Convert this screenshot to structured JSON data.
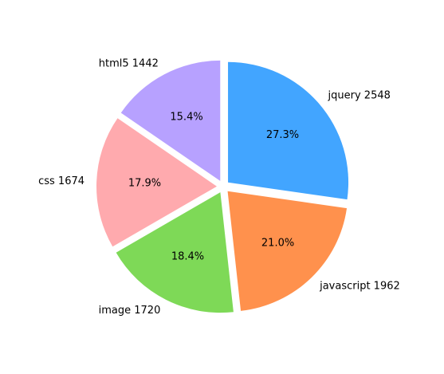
{
  "chart_data": {
    "type": "pie",
    "title": "",
    "slices": [
      {
        "label": "jquery",
        "value": 2548,
        "label_text": "jquery 2548",
        "pct_text": "27.3%",
        "color": "#42a5ff"
      },
      {
        "label": "javascript",
        "value": 1962,
        "label_text": "javascript 1962",
        "pct_text": "21.0%",
        "color": "#ff914d"
      },
      {
        "label": "image",
        "value": 1720,
        "label_text": "image 1720",
        "pct_text": "18.4%",
        "color": "#7ed957"
      },
      {
        "label": "css",
        "value": 1674,
        "label_text": "css 1674",
        "pct_text": "17.9%",
        "color": "#ffaaae"
      },
      {
        "label": "html5",
        "value": 1442,
        "label_text": "html5 1442",
        "pct_text": "15.4%",
        "color": "#b7a1ff"
      }
    ],
    "start_angle_deg": 90,
    "direction": "clockwise",
    "explode": true,
    "grid": false,
    "legend": "none"
  }
}
